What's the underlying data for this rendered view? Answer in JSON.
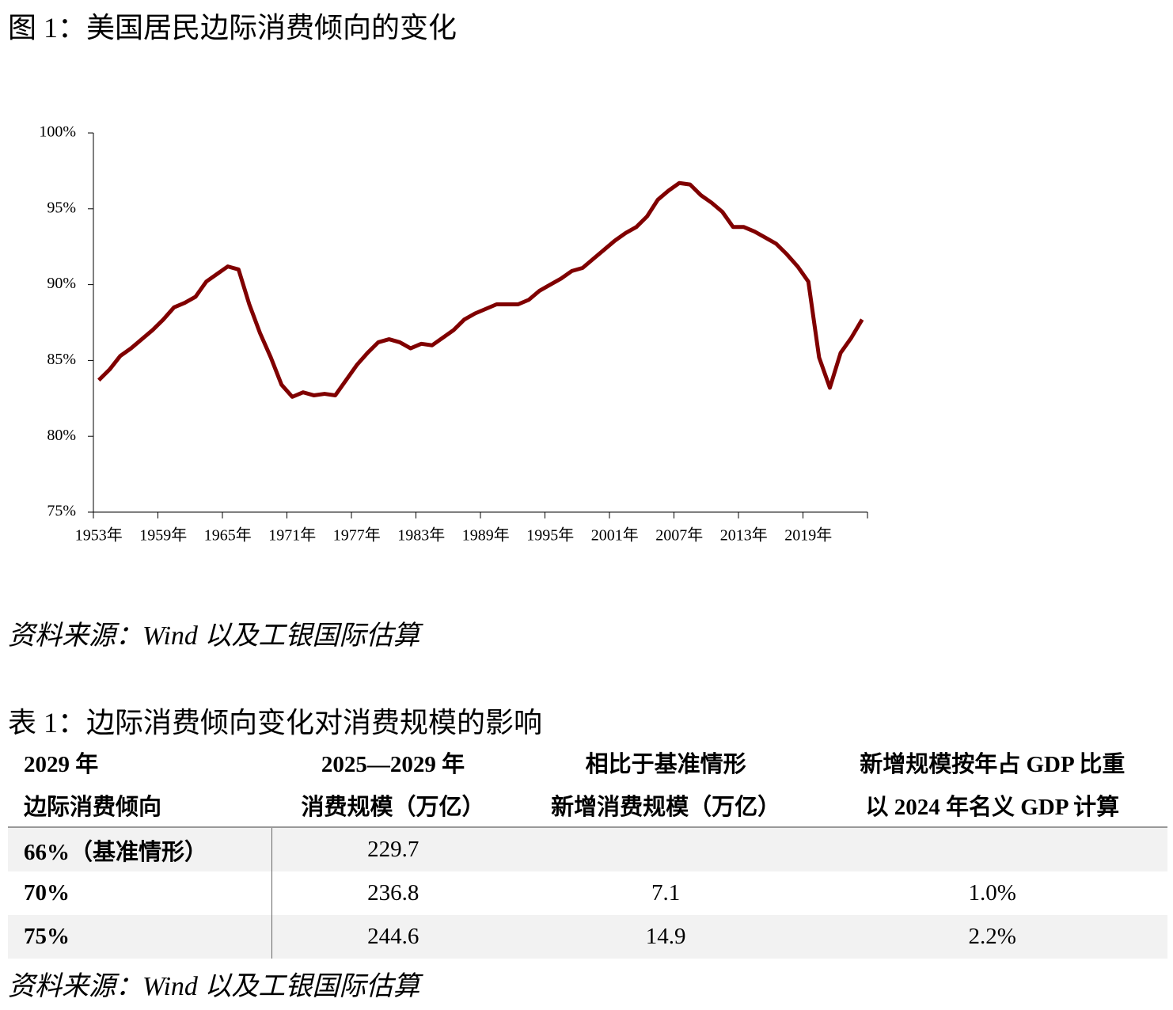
{
  "figure_caption": "图 1：美国居民边际消费倾向的变化",
  "chart_data": {
    "type": "line",
    "categories": [
      "1953年",
      null,
      null,
      null,
      null,
      null,
      "1959年",
      null,
      null,
      null,
      null,
      null,
      "1965年",
      null,
      null,
      null,
      null,
      null,
      "1971年",
      null,
      null,
      null,
      null,
      null,
      "1977年",
      null,
      null,
      null,
      null,
      null,
      "1983年",
      null,
      null,
      null,
      null,
      null,
      "1989年",
      null,
      null,
      null,
      null,
      null,
      "1995年",
      null,
      null,
      null,
      null,
      null,
      "2001年",
      null,
      null,
      null,
      null,
      null,
      "2007年",
      null,
      null,
      null,
      null,
      null,
      "2013年",
      null,
      null,
      null,
      null,
      null,
      "2019年",
      null,
      null,
      null,
      null,
      null
    ],
    "series": [
      {
        "name": "边际消费倾向",
        "color": "#800000",
        "values": [
          83.7,
          84.4,
          85.3,
          85.8,
          86.4,
          87.0,
          87.7,
          88.5,
          88.8,
          89.2,
          90.2,
          90.7,
          91.2,
          91.0,
          88.7,
          86.8,
          85.2,
          83.4,
          82.6,
          82.9,
          82.7,
          82.8,
          82.7,
          83.7,
          84.7,
          85.5,
          86.2,
          86.4,
          86.2,
          85.8,
          86.1,
          86.0,
          86.5,
          87.0,
          87.7,
          88.1,
          88.4,
          88.7,
          88.7,
          88.7,
          89.0,
          89.6,
          90.0,
          90.4,
          90.9,
          91.1,
          91.7,
          92.3,
          92.9,
          93.4,
          93.8,
          94.5,
          95.6,
          96.2,
          96.7,
          96.6,
          95.9,
          95.4,
          94.8,
          93.8,
          93.8,
          93.5,
          93.1,
          92.7,
          92.0,
          91.2,
          90.2,
          85.2,
          83.2,
          85.5,
          86.5,
          87.7
        ]
      }
    ],
    "ylim": [
      75,
      100
    ],
    "yticks": [
      {
        "value": 75,
        "label": "75%"
      },
      {
        "value": 80,
        "label": "80%"
      },
      {
        "value": 85,
        "label": "85%"
      },
      {
        "value": 90,
        "label": "90%"
      },
      {
        "value": 95,
        "label": "95%"
      },
      {
        "value": 100,
        "label": "100%"
      }
    ],
    "grid": false,
    "legend": false
  },
  "figure_source": "资料来源：Wind 以及工银国际估算",
  "table_caption": "表 1：边际消费倾向变化对消费规模的影响",
  "table": {
    "header": [
      [
        "2029 年",
        "边际消费倾向"
      ],
      [
        "2025—2029 年",
        "消费规模（万亿）"
      ],
      [
        "相比于基准情形",
        "新增消费规模（万亿）"
      ],
      [
        "新增规模按年占 GDP 比重",
        "以 2024 年名义 GDP 计算"
      ]
    ],
    "rows": [
      [
        "66%（基准情形）",
        "229.7",
        null,
        null
      ],
      [
        "70%",
        "236.8",
        "7.1",
        "1.0%"
      ],
      [
        "75%",
        "244.6",
        "14.9",
        "2.2%"
      ]
    ]
  },
  "table_source": "资料来源：Wind 以及工银国际估算"
}
